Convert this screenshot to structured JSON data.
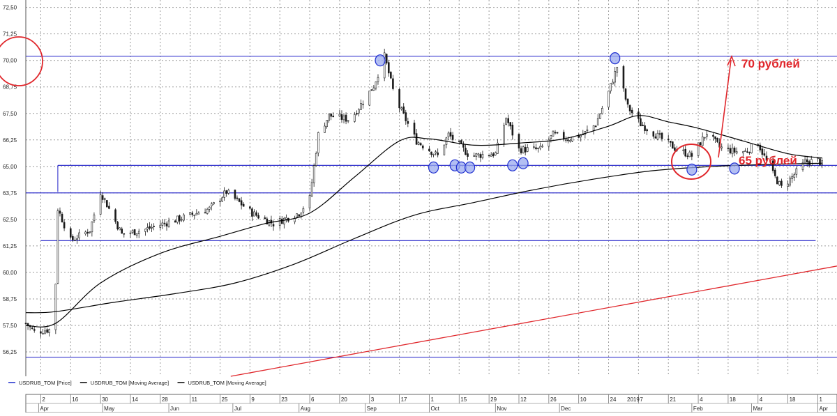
{
  "chart_data": {
    "type": "candlestick",
    "title": "",
    "y_ticks": [
      "72,50",
      "71,25",
      "70,00",
      "68,75",
      "67,50",
      "66,25",
      "65,00",
      "63,75",
      "62,50",
      "61,25",
      "60,00",
      "58,75",
      "57,50",
      "56,25"
    ],
    "y_tick_values": [
      72.5,
      71.25,
      70.0,
      68.75,
      67.5,
      66.25,
      65.0,
      63.75,
      62.5,
      61.25,
      60.0,
      58.75,
      57.5,
      56.25
    ],
    "ylim": [
      55.1,
      72.85
    ],
    "x_range": [
      "2018-03-26",
      "2019-04-10"
    ],
    "grid": true,
    "x_day_ticks": [
      {
        "label": "2",
        "date": "2018-04-02"
      },
      {
        "label": "16",
        "date": "2018-04-16"
      },
      {
        "label": "30",
        "date": "2018-04-30"
      },
      {
        "label": "14",
        "date": "2018-05-14"
      },
      {
        "label": "28",
        "date": "2018-05-28"
      },
      {
        "label": "11",
        "date": "2018-06-11"
      },
      {
        "label": "25",
        "date": "2018-06-25"
      },
      {
        "label": "9",
        "date": "2018-07-09"
      },
      {
        "label": "23",
        "date": "2018-07-23"
      },
      {
        "label": "6",
        "date": "2018-08-06"
      },
      {
        "label": "20",
        "date": "2018-08-20"
      },
      {
        "label": "3",
        "date": "2018-09-03"
      },
      {
        "label": "17",
        "date": "2018-09-17"
      },
      {
        "label": "1",
        "date": "2018-10-01"
      },
      {
        "label": "15",
        "date": "2018-10-15"
      },
      {
        "label": "29",
        "date": "2018-10-29"
      },
      {
        "label": "12",
        "date": "2018-11-12"
      },
      {
        "label": "26",
        "date": "2018-11-26"
      },
      {
        "label": "10",
        "date": "2018-12-10"
      },
      {
        "label": "24",
        "date": "2018-12-24"
      },
      {
        "label": "7",
        "date": "2019-01-07"
      },
      {
        "label": "21",
        "date": "2019-01-21"
      },
      {
        "label": "4",
        "date": "2019-02-04"
      },
      {
        "label": "18",
        "date": "2019-02-18"
      },
      {
        "label": "4",
        "date": "2019-03-04"
      },
      {
        "label": "18",
        "date": "2019-03-18"
      },
      {
        "label": "1",
        "date": "2019-04-01"
      }
    ],
    "x_year_label": {
      "label": "2019",
      "date": "2019-01-01"
    },
    "x_month_labels": [
      {
        "label": "Apr",
        "date": "2018-04-01"
      },
      {
        "label": "May",
        "date": "2018-05-01"
      },
      {
        "label": "Jun",
        "date": "2018-06-01"
      },
      {
        "label": "Jul",
        "date": "2018-07-01"
      },
      {
        "label": "Aug",
        "date": "2018-08-01"
      },
      {
        "label": "Sep",
        "date": "2018-09-01"
      },
      {
        "label": "Oct",
        "date": "2018-10-01"
      },
      {
        "label": "Nov",
        "date": "2018-11-01"
      },
      {
        "label": "Dec",
        "date": "2018-12-01"
      },
      {
        "label": "Feb",
        "date": "2019-02-01"
      },
      {
        "label": "Mar",
        "date": "2019-03-01"
      },
      {
        "label": "Apr",
        "date": "2019-04-01"
      }
    ],
    "price_anchors": [
      {
        "date": "2018-03-26",
        "y": 57.6
      },
      {
        "date": "2018-03-30",
        "y": 57.2
      },
      {
        "date": "2018-04-06",
        "y": 57.3
      },
      {
        "date": "2018-04-09",
        "y": 59.5
      },
      {
        "date": "2018-04-10",
        "y": 63.0
      },
      {
        "date": "2018-04-16",
        "y": 61.5
      },
      {
        "date": "2018-04-25",
        "y": 62.0
      },
      {
        "date": "2018-04-30",
        "y": 63.8
      },
      {
        "date": "2018-05-10",
        "y": 61.8
      },
      {
        "date": "2018-05-20",
        "y": 62.0
      },
      {
        "date": "2018-06-05",
        "y": 62.5
      },
      {
        "date": "2018-06-20",
        "y": 63.0
      },
      {
        "date": "2018-06-28",
        "y": 63.8
      },
      {
        "date": "2018-07-10",
        "y": 62.8
      },
      {
        "date": "2018-07-20",
        "y": 62.3
      },
      {
        "date": "2018-08-01",
        "y": 62.8
      },
      {
        "date": "2018-08-06",
        "y": 63.5
      },
      {
        "date": "2018-08-10",
        "y": 66.5
      },
      {
        "date": "2018-08-15",
        "y": 67.4
      },
      {
        "date": "2018-08-25",
        "y": 67.2
      },
      {
        "date": "2018-09-05",
        "y": 68.8
      },
      {
        "date": "2018-09-10",
        "y": 70.2
      },
      {
        "date": "2018-09-15",
        "y": 68.2
      },
      {
        "date": "2018-09-25",
        "y": 66.2
      },
      {
        "date": "2018-10-05",
        "y": 65.5
      },
      {
        "date": "2018-10-10",
        "y": 66.5
      },
      {
        "date": "2018-10-20",
        "y": 65.5
      },
      {
        "date": "2018-11-01",
        "y": 65.6
      },
      {
        "date": "2018-11-06",
        "y": 67.3
      },
      {
        "date": "2018-11-12",
        "y": 65.8
      },
      {
        "date": "2018-11-22",
        "y": 65.8
      },
      {
        "date": "2018-11-28",
        "y": 66.5
      },
      {
        "date": "2018-12-05",
        "y": 66.3
      },
      {
        "date": "2018-12-12",
        "y": 66.5
      },
      {
        "date": "2018-12-18",
        "y": 67.0
      },
      {
        "date": "2018-12-24",
        "y": 68.5
      },
      {
        "date": "2018-12-28",
        "y": 69.7
      },
      {
        "date": "2019-01-02",
        "y": 67.8
      },
      {
        "date": "2019-01-08",
        "y": 67.0
      },
      {
        "date": "2019-01-15",
        "y": 66.5
      },
      {
        "date": "2019-01-25",
        "y": 65.8
      },
      {
        "date": "2019-02-01",
        "y": 65.5
      },
      {
        "date": "2019-02-08",
        "y": 66.6
      },
      {
        "date": "2019-02-14",
        "y": 65.9
      },
      {
        "date": "2019-02-21",
        "y": 65.7
      },
      {
        "date": "2019-02-26",
        "y": 65.7
      },
      {
        "date": "2019-03-04",
        "y": 66.1
      },
      {
        "date": "2019-03-10",
        "y": 64.8
      },
      {
        "date": "2019-03-15",
        "y": 64.0
      },
      {
        "date": "2019-03-20",
        "y": 64.5
      },
      {
        "date": "2019-03-26",
        "y": 65.2
      },
      {
        "date": "2019-04-01",
        "y": 65.3
      },
      {
        "date": "2019-04-03",
        "y": 65.1
      }
    ],
    "ma_fast": [
      {
        "date": "2018-03-26",
        "y": 57.5
      },
      {
        "date": "2018-04-09",
        "y": 57.6
      },
      {
        "date": "2018-04-30",
        "y": 59.5
      },
      {
        "date": "2018-05-28",
        "y": 60.9
      },
      {
        "date": "2018-06-25",
        "y": 61.7
      },
      {
        "date": "2018-07-16",
        "y": 62.3
      },
      {
        "date": "2018-08-06",
        "y": 62.8
      },
      {
        "date": "2018-08-27",
        "y": 64.5
      },
      {
        "date": "2018-09-17",
        "y": 66.2
      },
      {
        "date": "2018-10-01",
        "y": 66.3
      },
      {
        "date": "2018-10-22",
        "y": 66.0
      },
      {
        "date": "2018-11-12",
        "y": 66.1
      },
      {
        "date": "2018-12-03",
        "y": 66.3
      },
      {
        "date": "2018-12-24",
        "y": 66.9
      },
      {
        "date": "2019-01-07",
        "y": 67.4
      },
      {
        "date": "2019-01-21",
        "y": 67.1
      },
      {
        "date": "2019-02-04",
        "y": 66.8
      },
      {
        "date": "2019-02-25",
        "y": 66.2
      },
      {
        "date": "2019-03-18",
        "y": 65.6
      },
      {
        "date": "2019-04-03",
        "y": 65.4
      }
    ],
    "ma_slow": [
      {
        "date": "2018-03-26",
        "y": 58.1
      },
      {
        "date": "2018-04-09",
        "y": 58.15
      },
      {
        "date": "2018-05-07",
        "y": 58.6
      },
      {
        "date": "2018-06-04",
        "y": 59.0
      },
      {
        "date": "2018-07-02",
        "y": 59.5
      },
      {
        "date": "2018-07-30",
        "y": 60.4
      },
      {
        "date": "2018-08-27",
        "y": 61.6
      },
      {
        "date": "2018-09-24",
        "y": 62.7
      },
      {
        "date": "2018-10-22",
        "y": 63.3
      },
      {
        "date": "2018-11-19",
        "y": 63.9
      },
      {
        "date": "2018-12-17",
        "y": 64.4
      },
      {
        "date": "2019-01-14",
        "y": 64.8
      },
      {
        "date": "2019-02-11",
        "y": 65.0
      },
      {
        "date": "2019-03-11",
        "y": 65.1
      },
      {
        "date": "2019-04-03",
        "y": 65.15
      }
    ],
    "horizontal_levels": [
      {
        "y": 70.2,
        "from": "2018-03-26",
        "to": "2019-04-10"
      },
      {
        "y": 65.05,
        "from": "2018-04-10",
        "to": "2019-04-10"
      },
      {
        "y": 63.75,
        "from": "2018-03-26",
        "to": "2019-04-10"
      },
      {
        "y": 61.5,
        "from": "2018-04-02",
        "to": "2019-03-31"
      },
      {
        "y": 56.0,
        "from": "2018-03-26",
        "to": "2019-04-10"
      }
    ],
    "red_trendline": {
      "x1": "2018-06-30",
      "y1": 55.1,
      "x2": "2019-04-10",
      "y2": 60.3
    },
    "touch_points": [
      {
        "date": "2018-09-08",
        "y": 70.0
      },
      {
        "date": "2018-12-27",
        "y": 70.1
      },
      {
        "date": "2018-10-03",
        "y": 64.95
      },
      {
        "date": "2018-10-13",
        "y": 65.05
      },
      {
        "date": "2018-10-16",
        "y": 64.95
      },
      {
        "date": "2018-10-20",
        "y": 64.95
      },
      {
        "date": "2018-11-09",
        "y": 65.05
      },
      {
        "date": "2018-11-14",
        "y": 65.15
      },
      {
        "date": "2019-02-01",
        "y": 64.85
      },
      {
        "date": "2019-02-21",
        "y": 64.9
      }
    ],
    "annotations": [
      "70 рублей",
      "65 рублей"
    ],
    "legend": [
      {
        "label": "USDRUB_TOM [Price]",
        "color": "#1a2bcc"
      },
      {
        "label": "USDRUB_TOM [Moving Average]",
        "color": "#000000"
      },
      {
        "label": "USDRUB_TOM [Moving Average]",
        "color": "#000000"
      }
    ],
    "colors": {
      "level": "#1f1fc8",
      "annotation": "#e0262b",
      "candle": "#1a1a1a",
      "touch_fill": "#9aa9ef",
      "touch_stroke": "#1f2fd0"
    }
  }
}
